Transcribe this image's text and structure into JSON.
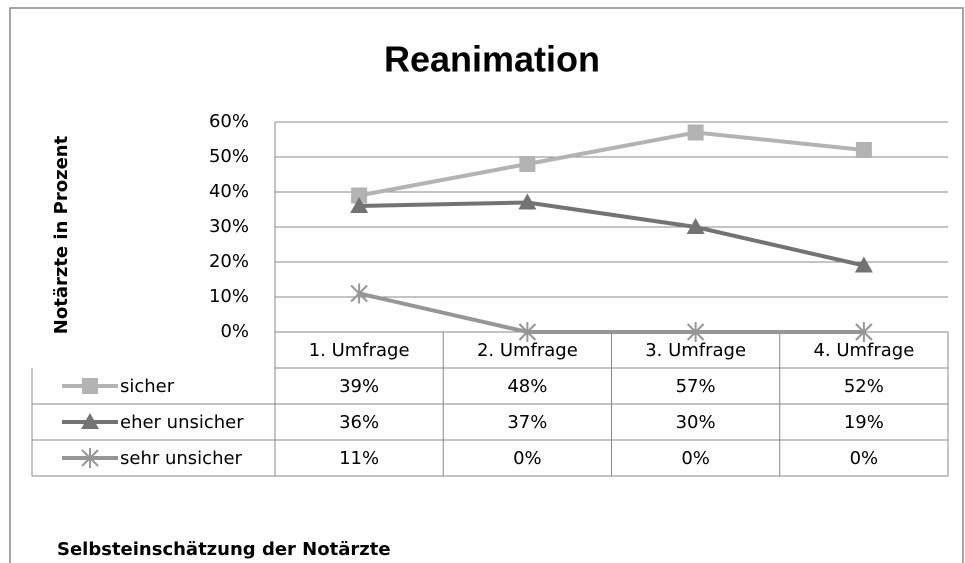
{
  "chart_data": {
    "type": "line",
    "title": "Reanimation",
    "y_axis_label": "Notärzte in Prozent",
    "footnote": "Selbsteinschätzung der Notärzte",
    "categories": [
      "1. Umfrage",
      "2. Umfrage",
      "3. Umfrage",
      "4. Umfrage"
    ],
    "series": [
      {
        "name": "sicher",
        "color": "#b3b3b3",
        "marker": "square",
        "values": [
          39,
          48,
          57,
          52
        ],
        "value_labels": [
          "39%",
          "48%",
          "57%",
          "52%"
        ]
      },
      {
        "name": "eher unsicher",
        "color": "#737373",
        "marker": "triangle",
        "values": [
          36,
          37,
          30,
          19
        ],
        "value_labels": [
          "36%",
          "37%",
          "30%",
          "19%"
        ]
      },
      {
        "name": "sehr unsicher",
        "color": "#969696",
        "marker": "star",
        "values": [
          11,
          0,
          0,
          0
        ],
        "value_labels": [
          "11%",
          "0%",
          "0%",
          "0%"
        ]
      }
    ],
    "ylim": [
      0,
      60
    ],
    "yticks": [
      {
        "value": 0,
        "label": "0%"
      },
      {
        "value": 10,
        "label": "10%"
      },
      {
        "value": 20,
        "label": "20%"
      },
      {
        "value": 30,
        "label": "30%"
      },
      {
        "value": 40,
        "label": "40%"
      },
      {
        "value": 50,
        "label": "50%"
      },
      {
        "value": 60,
        "label": "60%"
      }
    ],
    "grid": true,
    "data_table": true
  }
}
